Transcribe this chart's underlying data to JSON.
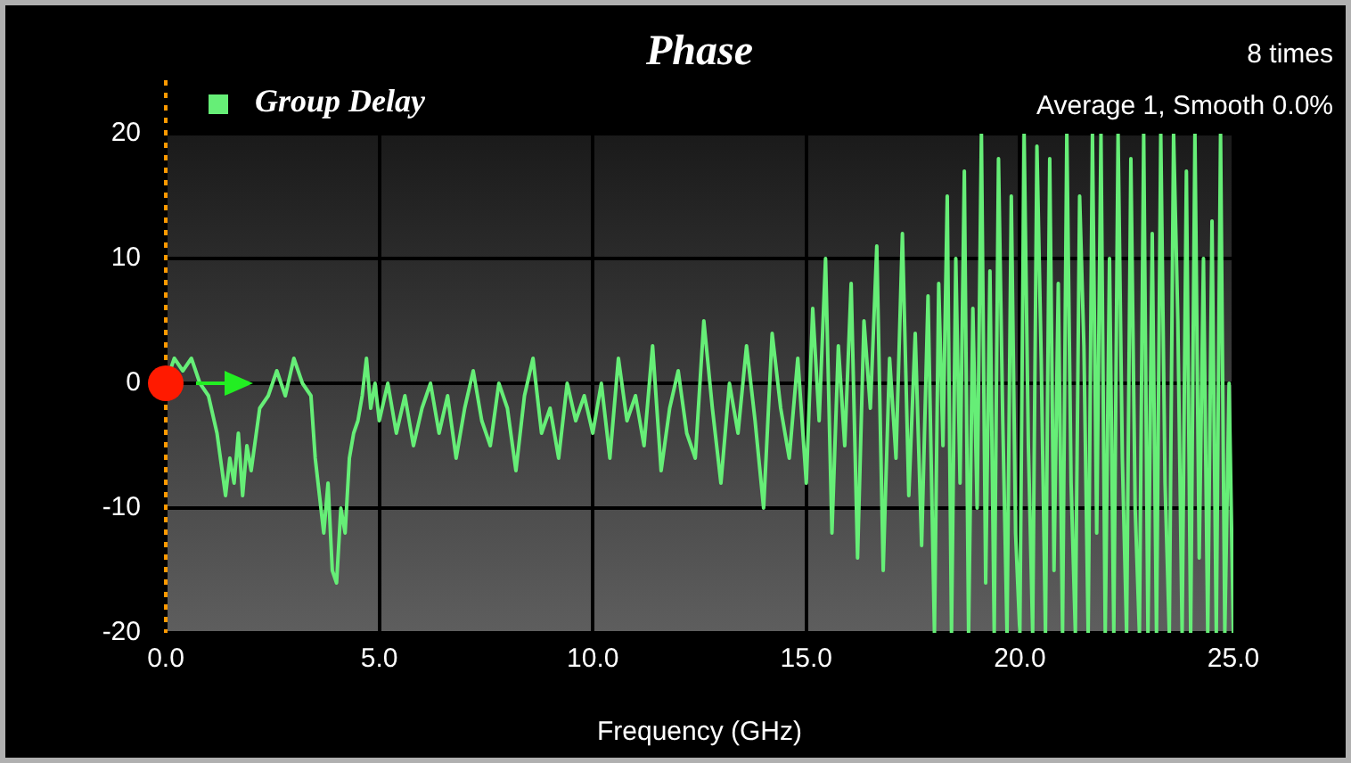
{
  "chart_data": {
    "type": "line",
    "title": "Phase",
    "xlabel": "Frequency (GHz)",
    "annotations": [
      "8 times",
      "Average 1, Smooth 0.0%"
    ],
    "legend": "top left",
    "grid": true,
    "marker": "none",
    "line_style": "solid",
    "xlim": [
      0,
      25
    ],
    "xticks": [
      {
        "value": 0,
        "label": "0.0"
      },
      {
        "value": 5,
        "label": "5.0"
      },
      {
        "value": 10,
        "label": "10.0"
      },
      {
        "value": 15,
        "label": "15.0"
      },
      {
        "value": 20,
        "label": "20.0"
      },
      {
        "value": 25,
        "label": "25.0"
      }
    ],
    "ylim": [
      -20,
      20
    ],
    "yticks": [
      -20,
      -10,
      0,
      10,
      20
    ],
    "ref_lines": [
      {
        "axis": "x",
        "value": 0,
        "color": "#ff9900",
        "line_style": "dotted"
      }
    ],
    "series": [
      {
        "name": "Group Delay",
        "color": "#66ee77",
        "x": [
          0.0,
          0.2,
          0.4,
          0.6,
          0.8,
          1.0,
          1.2,
          1.4,
          1.5,
          1.6,
          1.7,
          1.8,
          1.9,
          2.0,
          2.2,
          2.4,
          2.6,
          2.8,
          3.0,
          3.2,
          3.4,
          3.5,
          3.6,
          3.7,
          3.8,
          3.9,
          4.0,
          4.1,
          4.2,
          4.3,
          4.4,
          4.5,
          4.6,
          4.7,
          4.8,
          4.9,
          5.0,
          5.2,
          5.4,
          5.6,
          5.8,
          6.0,
          6.2,
          6.4,
          6.6,
          6.8,
          7.0,
          7.2,
          7.4,
          7.6,
          7.8,
          8.0,
          8.2,
          8.4,
          8.6,
          8.8,
          9.0,
          9.2,
          9.4,
          9.6,
          9.8,
          10.0,
          10.2,
          10.4,
          10.6,
          10.8,
          11.0,
          11.2,
          11.4,
          11.6,
          11.8,
          12.0,
          12.2,
          12.4,
          12.6,
          12.8,
          13.0,
          13.2,
          13.4,
          13.6,
          13.8,
          14.0,
          14.2,
          14.4,
          14.6,
          14.8,
          15.0,
          15.15,
          15.3,
          15.45,
          15.6,
          15.75,
          15.9,
          16.05,
          16.2,
          16.35,
          16.5,
          16.65,
          16.8,
          16.95,
          17.1,
          17.25,
          17.4,
          17.55,
          17.7,
          17.85,
          18.0,
          18.1,
          18.2,
          18.3,
          18.4,
          18.5,
          18.6,
          18.7,
          18.8,
          18.9,
          19.0,
          19.1,
          19.2,
          19.3,
          19.4,
          19.5,
          19.6,
          19.7,
          19.8,
          19.9,
          20.0,
          20.1,
          20.2,
          20.3,
          20.4,
          20.5,
          20.6,
          20.7,
          20.8,
          20.9,
          21.0,
          21.1,
          21.2,
          21.3,
          21.4,
          21.5,
          21.6,
          21.7,
          21.8,
          21.9,
          22.0,
          22.1,
          22.2,
          22.3,
          22.4,
          22.5,
          22.6,
          22.7,
          22.8,
          22.9,
          23.0,
          23.1,
          23.2,
          23.3,
          23.4,
          23.5,
          23.6,
          23.7,
          23.8,
          23.9,
          24.0,
          24.1,
          24.2,
          24.3,
          24.4,
          24.5,
          24.6,
          24.7,
          24.8,
          24.9,
          25.0
        ],
        "values": [
          0,
          2,
          1,
          2,
          0,
          -1,
          -4,
          -9,
          -6,
          -8,
          -4,
          -9,
          -5,
          -7,
          -2,
          -1,
          1,
          -1,
          2,
          0,
          -1,
          -6,
          -9,
          -12,
          -8,
          -15,
          -16,
          -10,
          -12,
          -6,
          -4,
          -3,
          -1,
          2,
          -2,
          0,
          -3,
          0,
          -4,
          -1,
          -5,
          -2,
          0,
          -4,
          -1,
          -6,
          -2,
          1,
          -3,
          -5,
          0,
          -2,
          -7,
          -1,
          2,
          -4,
          -2,
          -6,
          0,
          -3,
          -1,
          -4,
          0,
          -6,
          2,
          -3,
          -1,
          -5,
          3,
          -7,
          -2,
          1,
          -4,
          -6,
          5,
          -2,
          -8,
          0,
          -4,
          3,
          -3,
          -10,
          4,
          -2,
          -6,
          2,
          -8,
          6,
          -3,
          10,
          -12,
          3,
          -5,
          8,
          -14,
          5,
          -2,
          11,
          -15,
          2,
          -6,
          12,
          -9,
          4,
          -13,
          7,
          -20,
          8,
          -5,
          15,
          -20,
          10,
          -8,
          17,
          -20,
          6,
          -10,
          20,
          -16,
          9,
          -20,
          18,
          -3,
          -20,
          15,
          -12,
          -20,
          20,
          -5,
          -20,
          19,
          2,
          -20,
          18,
          -15,
          8,
          -20,
          20,
          -8,
          -20,
          15,
          3,
          -20,
          20,
          -12,
          20,
          -20,
          10,
          -20,
          20,
          -6,
          -20,
          18,
          -10,
          -20,
          20,
          -20,
          12,
          -20,
          20,
          -8,
          -20,
          20,
          5,
          -20,
          17,
          -20,
          20,
          -14,
          10,
          -20,
          13,
          -20,
          20,
          -20,
          0,
          -20
        ]
      }
    ]
  }
}
